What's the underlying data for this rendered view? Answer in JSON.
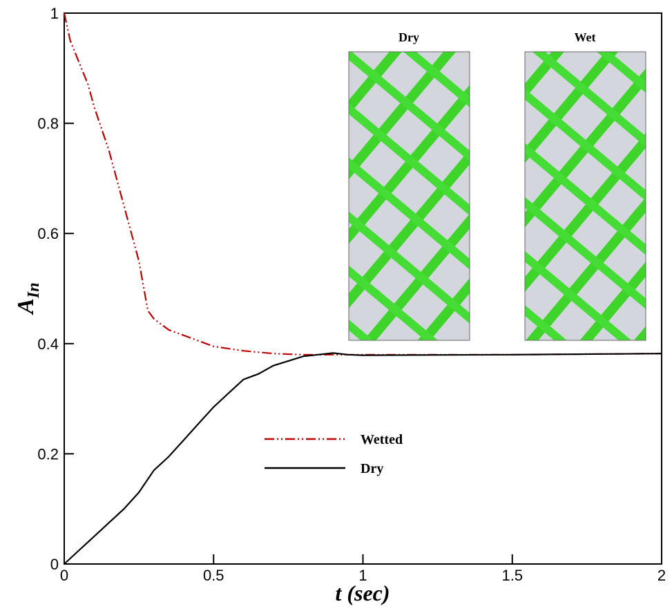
{
  "chart_data": {
    "type": "line",
    "x_label": "t (sec)",
    "y_label": "A",
    "y_label_sub": "In",
    "xlim": [
      0,
      2
    ],
    "xticks": [
      0,
      0.5,
      1,
      1.5,
      2
    ],
    "ylim": [
      0,
      1
    ],
    "yticks": [
      0,
      0.2,
      0.4,
      0.6,
      0.8,
      1
    ],
    "insets": [
      "Dry",
      "Wet"
    ],
    "series": [
      {
        "name": "Wetted",
        "color": "#c00000",
        "dash": "dash-dot-dot",
        "x": [
          0,
          0.02,
          0.05,
          0.08,
          0.1,
          0.15,
          0.2,
          0.25,
          0.28,
          0.3,
          0.35,
          0.4,
          0.5,
          0.6,
          0.7,
          0.8,
          0.9,
          1.0,
          1.5,
          2.0
        ],
        "values": [
          1.0,
          0.95,
          0.91,
          0.87,
          0.83,
          0.75,
          0.65,
          0.55,
          0.46,
          0.445,
          0.425,
          0.415,
          0.395,
          0.387,
          0.382,
          0.38,
          0.38,
          0.38,
          0.38,
          0.382
        ]
      },
      {
        "name": "Dry",
        "color": "#000000",
        "dash": "solid",
        "x": [
          0,
          0.05,
          0.1,
          0.15,
          0.2,
          0.25,
          0.3,
          0.35,
          0.4,
          0.45,
          0.5,
          0.55,
          0.6,
          0.65,
          0.7,
          0.8,
          0.9,
          0.95,
          1.0,
          1.5,
          2.0
        ],
        "values": [
          0,
          0.025,
          0.05,
          0.075,
          0.1,
          0.13,
          0.17,
          0.195,
          0.225,
          0.255,
          0.285,
          0.31,
          0.335,
          0.345,
          0.36,
          0.377,
          0.383,
          0.38,
          0.379,
          0.38,
          0.382
        ]
      }
    ]
  }
}
